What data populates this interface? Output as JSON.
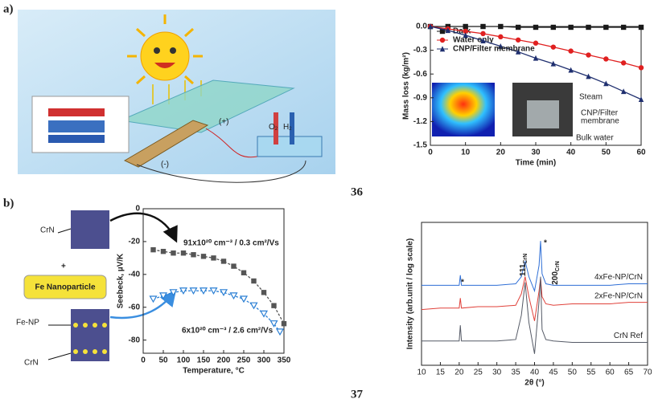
{
  "panel_labels": [
    "a)",
    "b)"
  ],
  "references": [
    "36",
    "37"
  ],
  "illustration_labels": {
    "plus_terminal": "(+)",
    "minus_terminal": "(-)",
    "o2": {
      "text": "O",
      "sub": "2"
    },
    "h2": {
      "text": "H",
      "sub": "2"
    },
    "crn_top": "CrN",
    "plus": "+",
    "fe_nanoparticle": "Fe Nanoparticle",
    "fe_np": "Fe-NP",
    "crn_bottom": "CrN"
  },
  "chart_data": [
    {
      "type": "line",
      "xlabel": "Time (min)",
      "ylabel": "Mass loss (kg/m²)",
      "x": [
        0,
        5,
        10,
        15,
        20,
        25,
        30,
        35,
        40,
        45,
        50,
        55,
        60
      ],
      "xlim": [
        0,
        60
      ],
      "xticks": [
        0,
        10,
        20,
        30,
        40,
        50,
        60
      ],
      "ylim": [
        -1.5,
        0
      ],
      "yticks": [
        {
          "value": 0,
          "label": "0.0"
        },
        -0.3,
        -0.6,
        -0.9,
        -1.2,
        -1.5
      ],
      "legend": "upper-left",
      "series": [
        {
          "name": "Dark",
          "color": "#1a1a1a",
          "marker": "square",
          "values": [
            0,
            0,
            0,
            0,
            0,
            -0.01,
            -0.01,
            -0.01,
            -0.01,
            -0.01,
            -0.01,
            -0.01,
            -0.01
          ]
        },
        {
          "name": "Water only",
          "color": "#e02020",
          "marker": "circle",
          "values": [
            0,
            -0.03,
            -0.06,
            -0.09,
            -0.13,
            -0.17,
            -0.21,
            -0.26,
            -0.31,
            -0.36,
            -0.41,
            -0.46,
            -0.52
          ]
        },
        {
          "name": "CNP/Filter membrane",
          "color": "#1f2f6f",
          "marker": "triangle",
          "values": [
            0,
            -0.05,
            -0.11,
            -0.18,
            -0.25,
            -0.32,
            -0.4,
            -0.47,
            -0.55,
            -0.63,
            -0.72,
            -0.82,
            -0.92
          ]
        }
      ],
      "inset_labels": [
        "Steam",
        "CNP/Filter",
        "membrane",
        "Bulk water"
      ]
    },
    {
      "type": "line",
      "xlabel": "Temperature, °C",
      "ylabel": "Seebeck, µV/K",
      "xlim": [
        0,
        350
      ],
      "xticks": [
        0,
        50,
        100,
        150,
        200,
        250,
        300,
        350
      ],
      "ylim": [
        -88,
        0
      ],
      "yticks": [
        0,
        -20,
        -40,
        -60,
        -80
      ],
      "line_style": "dashed",
      "series": [
        {
          "color": "#555555",
          "marker": "square",
          "x": [
            25,
            50,
            75,
            100,
            125,
            150,
            175,
            200,
            225,
            250,
            275,
            300,
            325,
            350
          ],
          "values": [
            -25,
            -26,
            -27,
            -27,
            -28,
            -29,
            -30,
            -32,
            -35,
            -39,
            -44,
            -51,
            -59,
            -70
          ]
        },
        {
          "color": "#2a7fd4",
          "marker": "triangle-down-open",
          "x": [
            25,
            50,
            75,
            100,
            125,
            150,
            175,
            200,
            225,
            250,
            275,
            300,
            325,
            340
          ],
          "values": [
            -55,
            -53,
            -51,
            -50,
            -50,
            -50,
            -50,
            -51,
            -53,
            -55,
            -59,
            -64,
            -70,
            -75
          ]
        }
      ],
      "annotations": [
        {
          "text": "91x10²⁰ cm⁻³ / 0.3 cm²/Vs",
          "color": "#333333"
        },
        {
          "text": "6x10²⁰ cm⁻³ / 2.6 cm²/Vs",
          "color": "#2a7fd4"
        }
      ]
    },
    {
      "type": "line",
      "xlabel": "2θ (°)",
      "ylabel": "Intensity (arb.unit / log scale)",
      "x": [
        10,
        15,
        20,
        20.3,
        20.6,
        25,
        30,
        35,
        36.5,
        37.5,
        38.5,
        40,
        41.2,
        41.6,
        42,
        43,
        45,
        50,
        55,
        60,
        65,
        70
      ],
      "xlim": [
        10,
        70
      ],
      "xticks": [
        10,
        15,
        20,
        25,
        30,
        35,
        40,
        45,
        50,
        55,
        60,
        65,
        70
      ],
      "ylim": [
        0,
        100
      ],
      "series": [
        {
          "name": "4xFe-NP/CrN",
          "color": "#2f6fd6",
          "values": [
            56,
            56,
            56,
            63,
            56,
            56,
            56,
            57,
            62,
            73,
            62,
            52,
            70,
            87,
            64,
            57,
            56,
            56,
            56,
            56,
            57,
            57
          ]
        },
        {
          "name": "2xFe-NP/CrN",
          "color": "#e0413a",
          "values": [
            39,
            40,
            40,
            47,
            40,
            41,
            41,
            42,
            50,
            62,
            48,
            31,
            52,
            61,
            48,
            43,
            42,
            43,
            43,
            43,
            44,
            44
          ]
        },
        {
          "name": "CrN Ref",
          "color": "#555a66",
          "values": [
            17,
            17,
            17,
            28,
            17,
            17,
            17,
            18,
            35,
            58,
            30,
            8,
            45,
            62,
            25,
            18,
            17,
            16,
            16,
            16,
            16,
            16
          ]
        }
      ],
      "annotations": [
        {
          "text": "*"
        },
        {
          "text": "111",
          "sub": "CrN"
        },
        {
          "text": "*"
        },
        {
          "text": "200",
          "sub": "CrN"
        }
      ]
    }
  ]
}
